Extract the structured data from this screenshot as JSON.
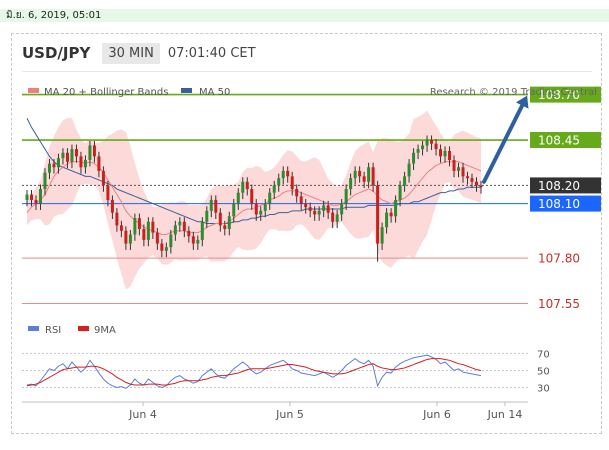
{
  "header": {
    "timestamp": "มิ.ย. 6, 2019, 05:01",
    "pair": "USD/JPY",
    "interval": "30 MIN",
    "time": "07:01:40 CET"
  },
  "legend": {
    "ma20": "MA 20 + Bollinger Bands",
    "ma50": "MA 50",
    "credit": "Research © 2019 Trading Central",
    "rsi": "RSI",
    "ma9": "9MA"
  },
  "colors": {
    "green_line": "#66aa1a",
    "blue_line": "#1a66ff",
    "red_line": "#e88a8a",
    "dark_label": "#333333",
    "bollinger": "#fbd3d3",
    "ma20": "#f08080",
    "ma50": "#3a5f9e",
    "arrow": "#2f5f9e",
    "rsi": "#5b7fd8",
    "rsi_ma": "#d62020",
    "candle_up": "#2e8b2e",
    "candle_down": "#c8201d"
  },
  "chart_data": {
    "type": "candlestick",
    "ylim": [
      107.47,
      108.83
    ],
    "x_labels": [
      "Jun 4",
      "Jun 5",
      "Jun 6",
      "Jun 14"
    ],
    "levels": [
      {
        "value": 108.7,
        "label": "108.70",
        "style": "resistance"
      },
      {
        "value": 108.45,
        "label": "108.45",
        "style": "resistance"
      },
      {
        "value": 108.2,
        "label": "108.20",
        "style": "current"
      },
      {
        "value": 108.1,
        "label": "108.10",
        "style": "pivot"
      },
      {
        "value": 107.8,
        "label": "107.80",
        "style": "support"
      },
      {
        "value": 107.55,
        "label": "107.55",
        "style": "support"
      }
    ],
    "rsi_ticks": [
      "70",
      "50",
      "30"
    ],
    "rsi_levels": [
      70,
      50,
      30
    ],
    "closes": [
      108.15,
      108.12,
      108.1,
      108.18,
      108.27,
      108.32,
      108.3,
      108.35,
      108.38,
      108.33,
      108.4,
      108.36,
      108.3,
      108.34,
      108.42,
      108.36,
      108.28,
      108.2,
      108.12,
      108.05,
      107.98,
      107.95,
      107.88,
      107.93,
      108.02,
      107.96,
      107.9,
      108.0,
      107.94,
      107.88,
      107.84,
      107.86,
      107.93,
      107.98,
      108.0,
      107.95,
      107.92,
      107.88,
      107.9,
      108.0,
      108.06,
      108.12,
      108.05,
      107.98,
      107.96,
      108.03,
      108.1,
      108.16,
      108.22,
      108.18,
      108.1,
      108.04,
      108.06,
      108.1,
      108.16,
      108.2,
      108.24,
      108.28,
      108.25,
      108.18,
      108.14,
      108.1,
      108.08,
      108.06,
      108.04,
      108.06,
      108.09,
      108.05,
      108.0,
      108.04,
      108.1,
      108.18,
      108.24,
      108.28,
      108.25,
      108.22,
      108.3,
      108.2,
      107.88,
      107.97,
      108.05,
      108.03,
      108.12,
      108.2,
      108.25,
      108.32,
      108.38,
      108.4,
      108.42,
      108.45,
      108.43,
      108.4,
      108.36,
      108.39,
      108.34,
      108.28,
      108.3,
      108.25,
      108.24,
      108.22,
      108.2,
      108.19
    ],
    "ma20": [
      108.05,
      108.08,
      108.1,
      108.12,
      108.15,
      108.2,
      108.25,
      108.28,
      108.3,
      108.32,
      108.33,
      108.33,
      108.33,
      108.32,
      108.33,
      108.32,
      108.3,
      108.27,
      108.23,
      108.19,
      108.15,
      108.11,
      108.06,
      108.03,
      108.01,
      107.99,
      107.97,
      107.96,
      107.95,
      107.94,
      107.93,
      107.93,
      107.94,
      107.95,
      107.95,
      107.95,
      107.94,
      107.94,
      107.94,
      107.95,
      107.97,
      107.98,
      107.99,
      107.99,
      107.99,
      108.0,
      108.02,
      108.04,
      108.06,
      108.07,
      108.07,
      108.08,
      108.09,
      108.1,
      108.12,
      108.13,
      108.14,
      108.16,
      108.17,
      108.17,
      108.17,
      108.16,
      108.15,
      108.14,
      108.13,
      108.12,
      108.11,
      108.1,
      108.09,
      108.09,
      108.1,
      108.11,
      108.13,
      108.15,
      108.16,
      108.17,
      108.18,
      108.17,
      108.14,
      108.12,
      108.11,
      108.1,
      108.11,
      108.12,
      108.13,
      108.15,
      108.18,
      108.21,
      108.24,
      108.27,
      108.29,
      108.31,
      108.32,
      108.33,
      108.33,
      108.33,
      108.33,
      108.32,
      108.31,
      108.3,
      108.29,
      108.28
    ],
    "ma50": [
      108.57,
      108.52,
      108.48,
      108.44,
      108.4,
      108.36,
      108.33,
      108.31,
      108.3,
      108.29,
      108.28,
      108.27,
      108.26,
      108.25,
      108.25,
      108.24,
      108.23,
      108.22,
      108.21,
      108.2,
      108.18,
      108.17,
      108.16,
      108.15,
      108.14,
      108.13,
      108.12,
      108.11,
      108.1,
      108.09,
      108.08,
      108.07,
      108.06,
      108.05,
      108.04,
      108.03,
      108.02,
      108.01,
      108.0,
      108.0,
      107.99,
      107.99,
      107.99,
      107.99,
      107.99,
      107.99,
      108.0,
      108.0,
      108.01,
      108.01,
      108.02,
      108.02,
      108.03,
      108.03,
      108.04,
      108.04,
      108.05,
      108.05,
      108.05,
      108.06,
      108.06,
      108.06,
      108.07,
      108.07,
      108.07,
      108.07,
      108.07,
      108.07,
      108.07,
      108.07,
      108.07,
      108.08,
      108.08,
      108.08,
      108.08,
      108.08,
      108.09,
      108.09,
      108.09,
      108.09,
      108.09,
      108.09,
      108.09,
      108.1,
      108.1,
      108.1,
      108.11,
      108.11,
      108.12,
      108.13,
      108.14,
      108.15,
      108.16,
      108.16,
      108.17,
      108.17,
      108.18,
      108.18,
      108.19,
      108.19,
      108.19,
      108.19
    ],
    "rsi": [
      33,
      34,
      32,
      38,
      45,
      52,
      50,
      55,
      58,
      52,
      60,
      54,
      48,
      53,
      62,
      55,
      47,
      40,
      35,
      32,
      30,
      31,
      29,
      33,
      40,
      35,
      33,
      40,
      36,
      32,
      30,
      32,
      38,
      42,
      44,
      40,
      38,
      35,
      37,
      44,
      48,
      52,
      46,
      42,
      41,
      46,
      52,
      56,
      60,
      56,
      50,
      46,
      48,
      52,
      56,
      58,
      60,
      62,
      58,
      52,
      50,
      47,
      46,
      45,
      44,
      46,
      48,
      45,
      42,
      45,
      50,
      56,
      60,
      64,
      60,
      58,
      62,
      55,
      32,
      42,
      48,
      47,
      54,
      58,
      61,
      63,
      65,
      66,
      67,
      68,
      66,
      63,
      58,
      60,
      55,
      50,
      52,
      48,
      47,
      46,
      45,
      44
    ],
    "rsi_ma": [
      32,
      33,
      34,
      36,
      39,
      42,
      45,
      48,
      51,
      52,
      53,
      54,
      54,
      54,
      55,
      55,
      54,
      52,
      49,
      46,
      42,
      39,
      36,
      34,
      33,
      33,
      33,
      34,
      34,
      34,
      33,
      33,
      34,
      35,
      37,
      38,
      38,
      38,
      38,
      39,
      40,
      42,
      43,
      44,
      44,
      45,
      46,
      47,
      49,
      51,
      52,
      52,
      52,
      52,
      53,
      54,
      55,
      56,
      57,
      57,
      56,
      55,
      54,
      52,
      50,
      49,
      48,
      47,
      46,
      46,
      46,
      47,
      49,
      51,
      53,
      55,
      57,
      58,
      55,
      53,
      52,
      51,
      51,
      52,
      53,
      55,
      57,
      59,
      61,
      63,
      64,
      64,
      64,
      63,
      62,
      60,
      58,
      57,
      55,
      53,
      51,
      50
    ]
  }
}
